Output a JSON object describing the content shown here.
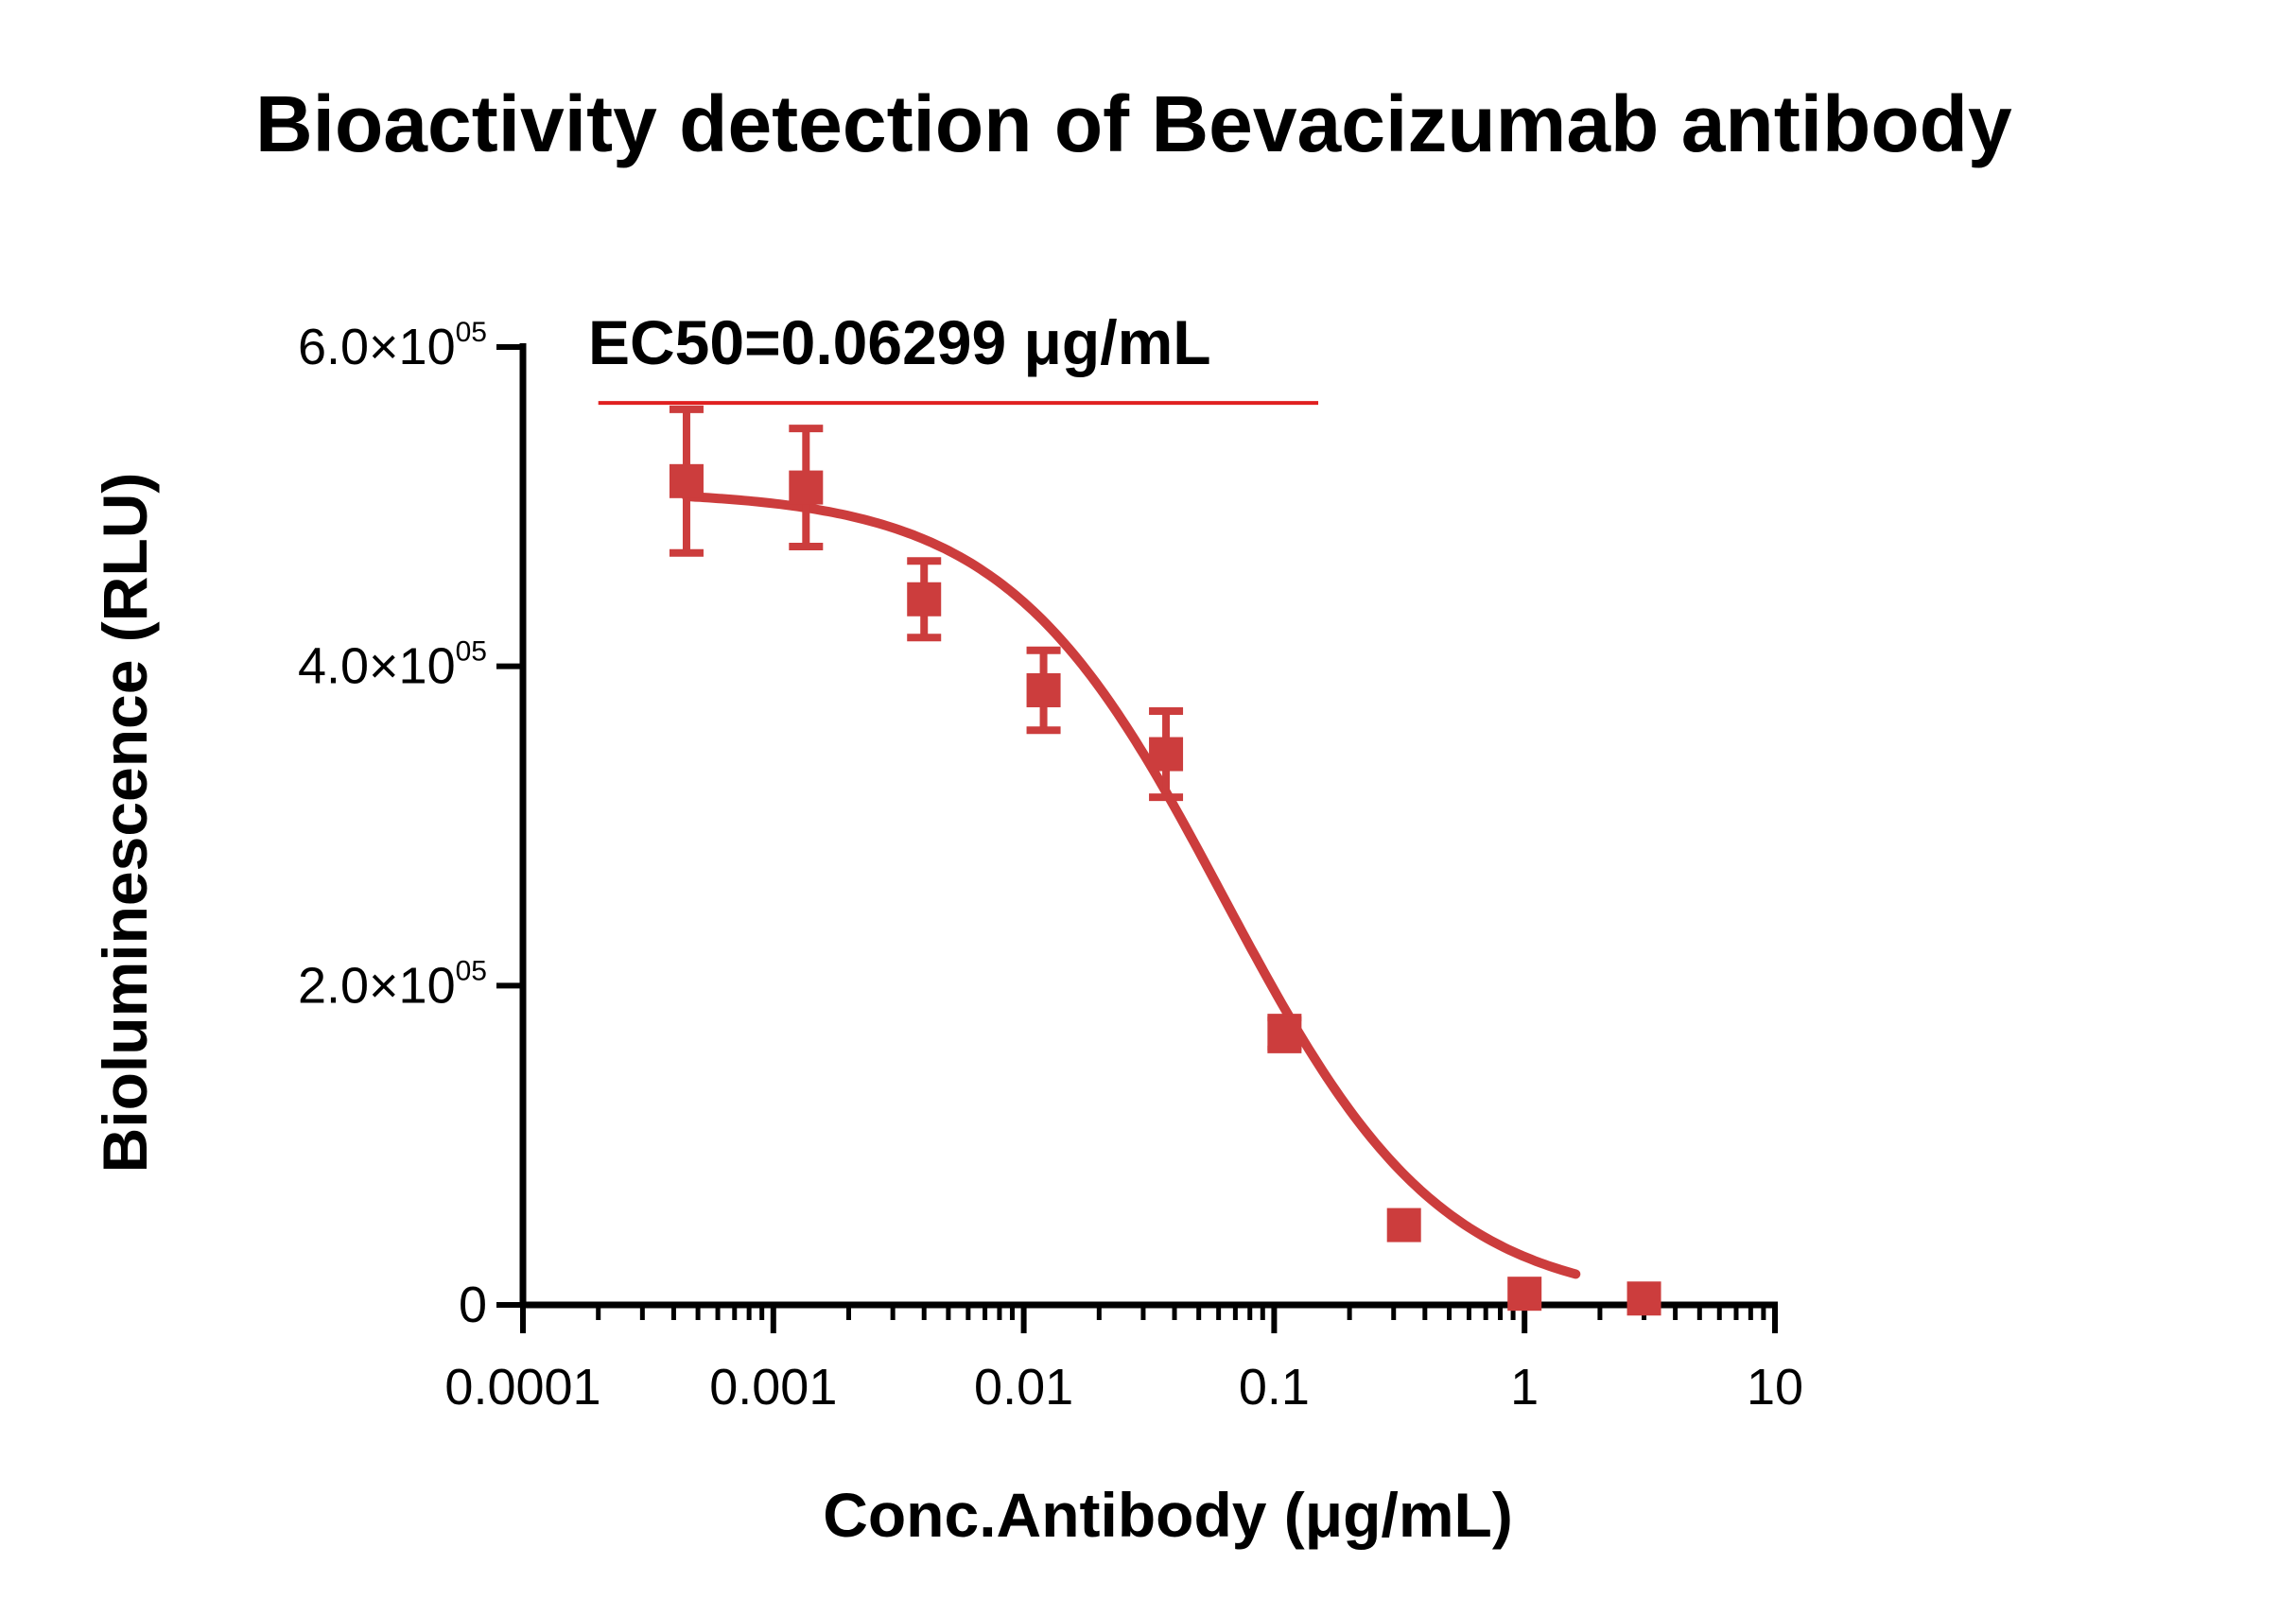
{
  "chart_data": {
    "type": "scatter",
    "title": "Bioactivity detection of Bevacizumab antibody",
    "xlabel": "Conc.Antibody (μg/mL)",
    "ylabel": "Bioluminescence (RLU)",
    "x_scale": "log",
    "xlim": [
      0.0001,
      10
    ],
    "ylim": [
      0,
      600000
    ],
    "x_ticks": [
      {
        "value": 0.0001,
        "label": "0.0001"
      },
      {
        "value": 0.001,
        "label": "0.001"
      },
      {
        "value": 0.01,
        "label": "0.01"
      },
      {
        "value": 0.1,
        "label": "0.1"
      },
      {
        "value": 1,
        "label": "1"
      },
      {
        "value": 10,
        "label": "10"
      }
    ],
    "y_ticks": [
      {
        "value": 0,
        "label": "0"
      },
      {
        "value": 200000,
        "mantissa": "2.0",
        "times": "×10",
        "exp": "05"
      },
      {
        "value": 400000,
        "mantissa": "4.0",
        "times": "×10",
        "exp": "05"
      },
      {
        "value": 600000,
        "mantissa": "6.0",
        "times": "×10",
        "exp": "05"
      }
    ],
    "annotation": {
      "text": "EC50=0.06299 μg/mL",
      "line_y": 565000,
      "line_x": [
        0.0002,
        0.15
      ]
    },
    "colors": {
      "series": "#cc3d3d",
      "annotation_line": "#e02020",
      "axis": "#000000"
    },
    "fit": {
      "model": "4PL",
      "top": 510000,
      "bottom": 0,
      "ec50": 0.06299,
      "hill": 1.0,
      "x_range": [
        0.00045,
        1.6
      ]
    },
    "points": [
      {
        "x": 0.00045,
        "y": 516000,
        "err": 45000
      },
      {
        "x": 0.00135,
        "y": 512000,
        "err": 37000
      },
      {
        "x": 0.004,
        "y": 442000,
        "err": 24000
      },
      {
        "x": 0.012,
        "y": 385000,
        "err": 25000
      },
      {
        "x": 0.037,
        "y": 345000,
        "err": 27000
      },
      {
        "x": 0.11,
        "y": 170000,
        "err": 10000
      },
      {
        "x": 0.33,
        "y": 50000,
        "err": 0
      },
      {
        "x": 1.0,
        "y": 7000,
        "err": 0
      },
      {
        "x": 3.0,
        "y": 4000,
        "err": 0
      }
    ]
  }
}
